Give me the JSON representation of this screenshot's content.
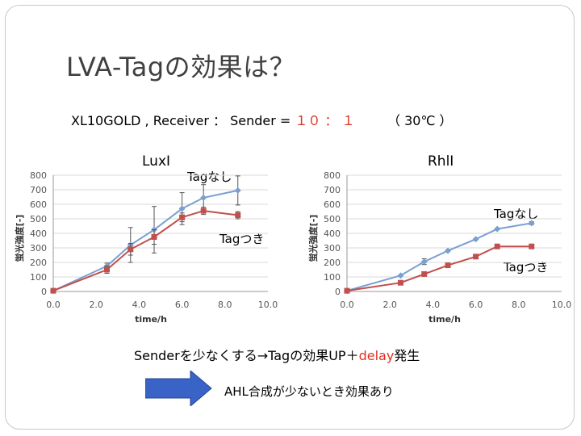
{
  "slide": {
    "title": "LVA-Tagの効果は？",
    "condition_prefix": "XL10GOLD , Receiver ：  Sender = ",
    "ratio": "１０  ：  １",
    "temperature": "（ 30℃ ）",
    "summary_prefix": "Senderを少なくする→Tagの効果UP＋",
    "summary_delay": "delay",
    "summary_suffix": "発生",
    "effect_text": "AHL合成が少ないとき効果あり",
    "colors": {
      "accent_red": "#e03020",
      "arrow_blue": "#3a63c8",
      "series_blue": "#7aa0d0",
      "series_red": "#c0504d"
    }
  },
  "chart_data": [
    {
      "type": "line",
      "title": "LuxI",
      "xlabel": "time/h",
      "ylabel": "蛍光強度[-]",
      "xlim": [
        0,
        10
      ],
      "ylim": [
        0,
        800
      ],
      "xticks": [
        "0.0",
        "2.0",
        "4.0",
        "6.0",
        "8.0",
        "10.0"
      ],
      "yticks": [
        "0",
        "100",
        "200",
        "300",
        "400",
        "500",
        "600",
        "700",
        "800"
      ],
      "series": [
        {
          "name": "Tagなし",
          "color": "#7aa0d0",
          "marker": "diamond",
          "points": [
            [
              0,
              5
            ],
            [
              2.5,
              175
            ],
            [
              3.6,
              320
            ],
            [
              4.7,
              425
            ],
            [
              6.0,
              570
            ],
            [
              7.0,
              645
            ],
            [
              8.6,
              695
            ]
          ],
          "err": [
            0,
            20,
            120,
            160,
            110,
            90,
            100
          ]
        },
        {
          "name": "Tagつき",
          "color": "#c0504d",
          "marker": "square",
          "points": [
            [
              0,
              5
            ],
            [
              2.5,
              150
            ],
            [
              3.6,
              290
            ],
            [
              4.7,
              375
            ],
            [
              6.0,
              510
            ],
            [
              7.0,
              555
            ],
            [
              8.6,
              525
            ]
          ],
          "err": [
            0,
            25,
            40,
            50,
            30,
            25,
            25
          ]
        }
      ],
      "annotations": [
        "Tagなし",
        "Tagつき"
      ]
    },
    {
      "type": "line",
      "title": "RhlI",
      "xlabel": "time/h",
      "ylabel": "蛍光強度[-]",
      "xlim": [
        0,
        10
      ],
      "ylim": [
        0,
        800
      ],
      "xticks": [
        "0.0",
        "2.0",
        "4.0",
        "6.0",
        "8.0",
        "10.0"
      ],
      "yticks": [
        "0",
        "100",
        "200",
        "300",
        "400",
        "500",
        "600",
        "700",
        "800"
      ],
      "series": [
        {
          "name": "Tagなし",
          "color": "#7aa0d0",
          "marker": "diamond",
          "points": [
            [
              0,
              5
            ],
            [
              2.5,
              110
            ],
            [
              3.6,
              205
            ],
            [
              4.7,
              280
            ],
            [
              6.0,
              360
            ],
            [
              7.0,
              430
            ],
            [
              8.6,
              470
            ]
          ],
          "err": [
            0,
            0,
            20,
            0,
            0,
            0,
            10
          ]
        },
        {
          "name": "Tagつき",
          "color": "#c0504d",
          "marker": "square",
          "points": [
            [
              0,
              5
            ],
            [
              2.5,
              60
            ],
            [
              3.6,
              120
            ],
            [
              4.7,
              180
            ],
            [
              6.0,
              240
            ],
            [
              7.0,
              310
            ],
            [
              8.6,
              310
            ]
          ],
          "err": [
            0,
            0,
            0,
            0,
            0,
            0,
            0
          ]
        }
      ],
      "annotations": [
        "Tagなし",
        "Tagつき"
      ]
    }
  ]
}
